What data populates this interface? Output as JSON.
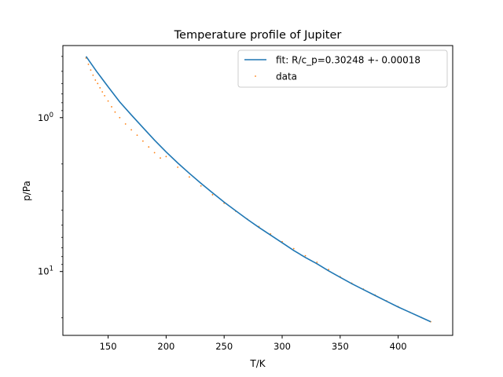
{
  "chart_data": {
    "type": "scatter",
    "title": "Temperature profile of Jupiter",
    "xlabel": "T/K",
    "ylabel": "p/Pa",
    "xlim": [
      111,
      447
    ],
    "ylim": [
      26,
      0.34
    ],
    "yscale": "log",
    "yaxis_inverted": true,
    "x_ticks": [
      150,
      200,
      250,
      300,
      350,
      400
    ],
    "x_tick_labels": [
      "150",
      "200",
      "250",
      "300",
      "350",
      "400"
    ],
    "y_major_ticks": [
      1,
      10
    ],
    "y_major_tick_labels": [
      "10^0",
      "10^1"
    ],
    "grid": false,
    "legend_position": "top-right",
    "series": [
      {
        "name": "fit: R/c_p=0.30248 +- 0.00018",
        "kind": "line",
        "color": "#1f77b4",
        "x": [
          131,
          140,
          150,
          160,
          170,
          180,
          190,
          200,
          210,
          220,
          230,
          240,
          250,
          260,
          270,
          280,
          290,
          300,
          310,
          320,
          330,
          340,
          350,
          360,
          370,
          380,
          390,
          400,
          410,
          420,
          428
        ],
        "y": [
          0.4,
          0.5,
          0.63,
          0.79,
          0.96,
          1.16,
          1.4,
          1.67,
          1.97,
          2.3,
          2.67,
          3.08,
          3.54,
          4.03,
          4.58,
          5.17,
          5.8,
          6.5,
          7.3,
          8.1,
          8.9,
          9.9,
          10.9,
          12.0,
          13.1,
          14.3,
          15.6,
          17.0,
          18.4,
          19.9,
          21.2
        ]
      },
      {
        "name": "data",
        "kind": "points",
        "color": "#ff7f0e",
        "x": [
          131,
          133,
          135,
          137,
          139,
          141,
          143,
          145,
          147,
          150,
          153,
          156,
          160,
          165,
          170,
          175,
          180,
          185,
          190,
          195,
          200,
          210,
          220,
          230,
          240,
          250,
          260,
          270,
          280,
          290,
          300,
          310,
          320,
          330,
          340,
          350,
          360,
          370,
          380,
          390,
          400,
          410,
          420,
          428
        ],
        "y": [
          0.41,
          0.45,
          0.49,
          0.53,
          0.57,
          0.6,
          0.64,
          0.68,
          0.72,
          0.78,
          0.85,
          0.92,
          1.0,
          1.1,
          1.2,
          1.3,
          1.42,
          1.55,
          1.69,
          1.83,
          1.79,
          2.1,
          2.43,
          2.78,
          3.17,
          3.6,
          4.06,
          4.56,
          5.1,
          5.7,
          6.4,
          7.1,
          7.9,
          8.7,
          9.7,
          10.8,
          11.9,
          13.0,
          14.2,
          15.5,
          16.9,
          18.4,
          19.9,
          21.2
        ]
      }
    ]
  }
}
